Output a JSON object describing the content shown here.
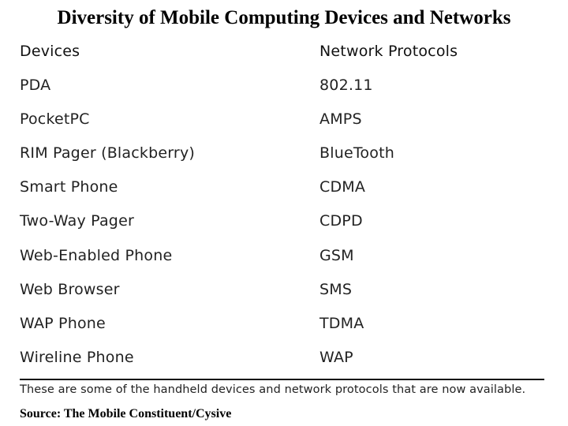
{
  "title": "Diversity of Mobile Computing Devices and Networks",
  "table": {
    "headers": [
      "Devices",
      "Network Protocols"
    ],
    "rows": [
      [
        "PDA",
        "802.11"
      ],
      [
        "PocketPC",
        "AMPS"
      ],
      [
        "RIM Pager (Blackberry)",
        "BlueTooth"
      ],
      [
        "Smart Phone",
        "CDMA"
      ],
      [
        "Two-Way Pager",
        "CDPD"
      ],
      [
        "Web-Enabled Phone",
        "GSM"
      ],
      [
        "Web Browser",
        "SMS"
      ],
      [
        "WAP Phone",
        "TDMA"
      ],
      [
        "Wireline Phone",
        "WAP"
      ]
    ]
  },
  "caption": "These are some of the handheld devices and network protocols that are now available.",
  "source": "Source: The Mobile Constituent/Cysive"
}
